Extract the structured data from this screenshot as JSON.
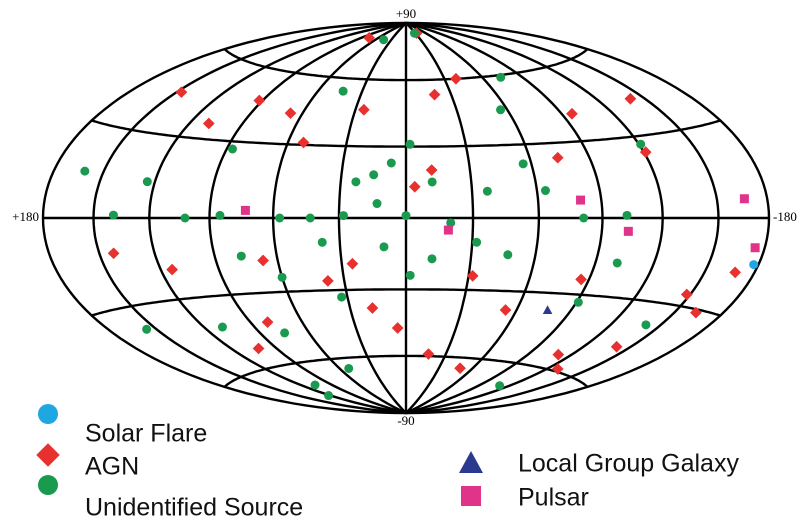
{
  "chart_data": {
    "type": "scatter",
    "projection": "hammer",
    "xlim": [
      180,
      -180
    ],
    "ylim": [
      -90,
      90
    ],
    "xticks": [
      {
        "value": 180,
        "label": "+180"
      },
      {
        "value": -180,
        "label": "-180"
      }
    ],
    "yticks": [
      {
        "value": 90,
        "label": "+90"
      },
      {
        "value": -90,
        "label": "-90"
      }
    ],
    "grid": true,
    "series": [
      {
        "name": "Solar Flare",
        "color": "#1ea7e0",
        "marker": "circle",
        "x": [
          -177
        ],
        "y": [
          -14
        ]
      },
      {
        "name": "AGN",
        "color": "#e8312f",
        "marker": "diamond",
        "x": [
          25,
          -19,
          -39,
          -34,
          -12,
          67,
          92,
          52,
          -121,
          -141,
          -168,
          -163,
          -141,
          -128,
          -111,
          -49,
          -17,
          5,
          25,
          38,
          80,
          114,
          142,
          147,
          109,
          77,
          -74,
          -86,
          -54,
          -4,
          -32,
          18,
          102,
          -96,
          -148,
          67
        ],
        "y": [
          46,
          53,
          60,
          84,
          20,
          43,
          47,
          31,
          24,
          43,
          -17,
          -31,
          -47,
          -59,
          -54,
          -65,
          -59,
          -47,
          -19,
          -26,
          -42,
          -19,
          -12,
          45,
          36,
          80,
          24,
          -24,
          -38,
          13,
          -24,
          -38,
          -52,
          41,
          -26,
          -17
        ]
      },
      {
        "name": "Unidentified Source",
        "color": "#1a9a4e",
        "marker": "circle",
        "x": [
          0,
          13,
          23,
          -2,
          7,
          -12,
          -20,
          43,
          57,
          85,
          139,
          -81,
          -102,
          -37,
          -56,
          38,
          10,
          -2,
          33,
          87,
          124,
          161,
          156,
          109,
          75,
          60,
          43,
          45,
          -27,
          -74,
          -64,
          -121,
          -101,
          -91,
          -12,
          52,
          -111,
          107,
          122,
          15,
          28,
          -32,
          -47,
          77,
          102,
          -56,
          -141
        ],
        "y": [
          1,
          6,
          15,
          31,
          23,
          15,
          -2,
          0,
          0,
          1,
          1,
          0,
          1,
          11,
          22,
          -10,
          -12,
          -24,
          -33,
          27,
          13,
          15,
          -38,
          -42,
          -47,
          -24,
          54,
          80,
          84,
          59,
          11,
          27,
          -17,
          -33,
          -17,
          -65,
          -70,
          -70,
          -75,
          18,
          1,
          -10,
          -15,
          -15,
          0,
          45,
          -38
        ]
      },
      {
        "name": "Local Group Galaxy",
        "color": "#2b3a8f",
        "marker": "triangle",
        "x": [
          -77
        ],
        "y": [
          -37
        ]
      },
      {
        "name": "Pulsar",
        "color": "#e0338a",
        "marker": "square",
        "x": [
          -166,
          -174,
          -103,
          -19,
          -80,
          73
        ],
        "y": [
          6,
          -9,
          -5,
          -5,
          7,
          3
        ]
      }
    ]
  }
}
